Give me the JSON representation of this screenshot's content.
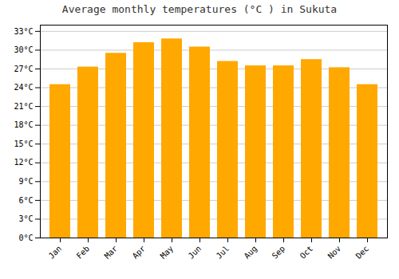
{
  "chart_data": {
    "type": "bar",
    "title": "Average monthly temperatures (°C ) in Sukuta",
    "categories": [
      "Jan",
      "Feb",
      "Mar",
      "Apr",
      "May",
      "Jun",
      "Jul",
      "Aug",
      "Sep",
      "Oct",
      "Nov",
      "Dec"
    ],
    "values": [
      24.5,
      27.3,
      29.5,
      31.2,
      31.8,
      30.5,
      28.2,
      27.5,
      27.5,
      28.5,
      27.2,
      24.5
    ],
    "color": "#FFA800",
    "ylim": [
      0,
      34
    ],
    "yticks": [
      {
        "value": 0,
        "label": "0°C"
      },
      {
        "value": 3,
        "label": "3°C"
      },
      {
        "value": 6,
        "label": "6°C"
      },
      {
        "value": 9,
        "label": "9°C"
      },
      {
        "value": 12,
        "label": "12°C"
      },
      {
        "value": 15,
        "label": "15°C"
      },
      {
        "value": 18,
        "label": "18°C"
      },
      {
        "value": 21,
        "label": "21°C"
      },
      {
        "value": 24,
        "label": "24°C"
      },
      {
        "value": 27,
        "label": "27°C"
      },
      {
        "value": 30,
        "label": "30°C"
      },
      {
        "value": 33,
        "label": "33°C"
      }
    ],
    "grid": true
  }
}
